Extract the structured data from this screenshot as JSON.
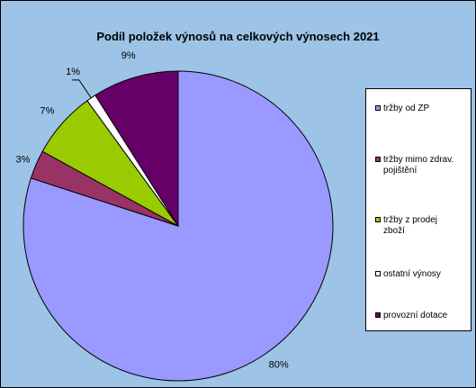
{
  "chart_data": {
    "type": "pie",
    "title": "Podíl položek výnosů na celkových výnosech 2021",
    "categories": [
      "tržby od ZP",
      "tržby mimo zdrav. pojištění",
      "tržby z prodej zboží",
      "ostatní výnosy",
      "provozní dotace"
    ],
    "values": [
      80,
      3,
      7,
      1,
      9
    ],
    "value_labels": [
      "80%",
      "3%",
      "7%",
      "1%",
      "9%"
    ],
    "colors": [
      "#9999ff",
      "#993366",
      "#99cc00",
      "#ffffff",
      "#660066"
    ],
    "legend_position": "right"
  },
  "legend": {
    "items": [
      {
        "label": "tržby od ZP",
        "color": "#9999ff"
      },
      {
        "label": "tržby mimo zdrav. pojištění",
        "color": "#993366"
      },
      {
        "label": "tržby z prodej zboží",
        "color": "#99cc00"
      },
      {
        "label": "ostatní výnosy",
        "color": "#ffffff"
      },
      {
        "label": "provozní dotace",
        "color": "#660066"
      }
    ]
  },
  "background_color": "#9dc3e6"
}
